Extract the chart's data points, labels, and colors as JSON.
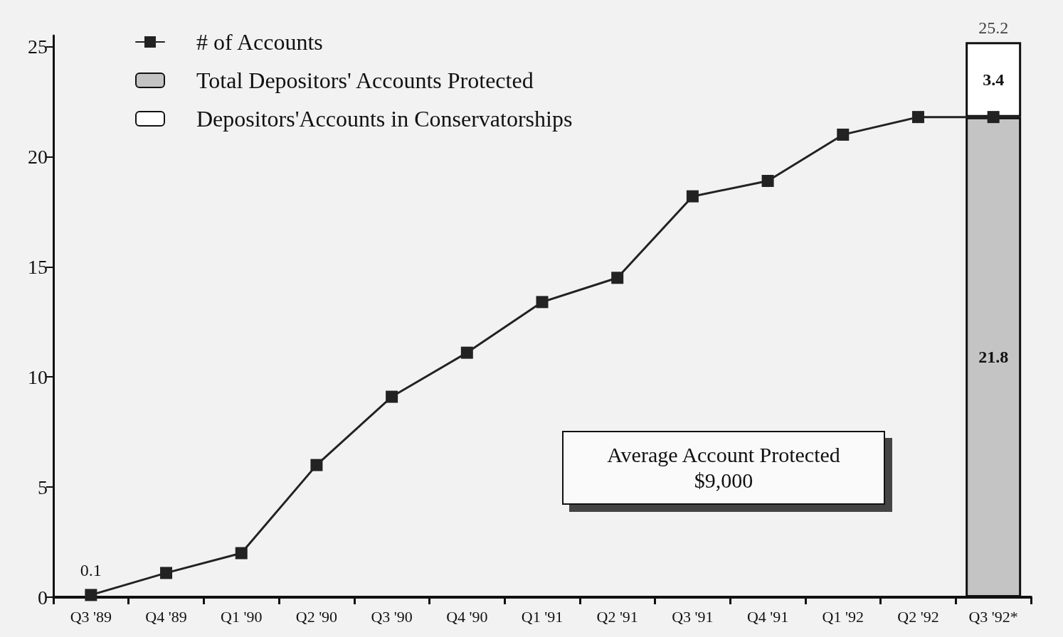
{
  "chart_data": {
    "type": "line",
    "categories": [
      "Q3 '89",
      "Q4 '89",
      "Q1 '90",
      "Q2 '90",
      "Q3 '90",
      "Q4 '90",
      "Q1 '91",
      "Q2 '91",
      "Q3 '91",
      "Q4 '91",
      "Q1 '92",
      "Q2 '92",
      "Q3 '92*"
    ],
    "series": [
      {
        "name": "# of Accounts",
        "color": "#222222",
        "values": [
          0.1,
          1.1,
          2.0,
          6.0,
          9.1,
          11.1,
          13.4,
          14.5,
          18.2,
          18.9,
          21.0,
          21.8,
          21.8
        ],
        "value_labels": [
          "0.1",
          null,
          null,
          null,
          null,
          null,
          null,
          null,
          null,
          null,
          null,
          null,
          null
        ]
      },
      {
        "name": "Total Depositors' Accounts Protected",
        "type": "bar",
        "color": "#c4c4c4",
        "values": [
          null,
          null,
          null,
          null,
          null,
          null,
          null,
          null,
          null,
          null,
          null,
          null,
          21.8
        ],
        "value_labels": [
          null,
          null,
          null,
          null,
          null,
          null,
          null,
          null,
          null,
          null,
          null,
          null,
          "21.8"
        ]
      },
      {
        "name": "Depositors'Accounts in Conservatorships",
        "type": "bar",
        "color": "#ffffff",
        "values": [
          null,
          null,
          null,
          null,
          null,
          null,
          null,
          null,
          null,
          null,
          null,
          null,
          3.4
        ],
        "value_labels": [
          null,
          null,
          null,
          null,
          null,
          null,
          null,
          null,
          null,
          null,
          null,
          null,
          "3.4"
        ]
      }
    ],
    "stacked": true,
    "totals": [
      null,
      null,
      null,
      null,
      null,
      null,
      null,
      null,
      null,
      null,
      null,
      null,
      "25.2"
    ],
    "ylim": [
      0,
      25.5
    ],
    "yticks": [
      0,
      5,
      10,
      15,
      20,
      25
    ],
    "grid": false,
    "legend": "top left",
    "marker": "square",
    "line_style": "solid",
    "annotations": [
      "Average Account Protected",
      "$9,000"
    ]
  }
}
